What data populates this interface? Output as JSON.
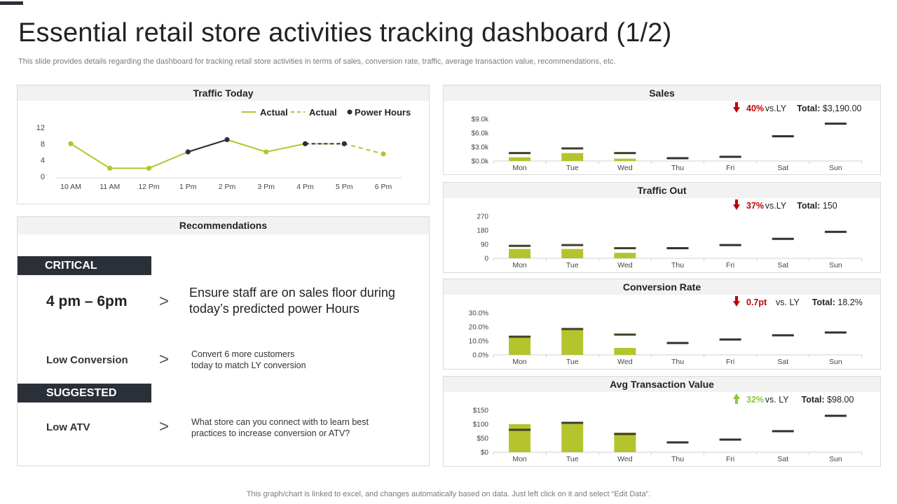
{
  "page": {
    "title": "Essential retail store activities tracking dashboard (1/2)",
    "subtitle": "This slide provides details regarding the dashboard for tracking retail store activities in terms of sales, conversion rate, traffic, average transaction value, recommendations, etc.",
    "footer": "This graph/chart is linked to excel, and changes automatically based on data. Just left click on it and select “Edit Data”."
  },
  "colors": {
    "accent": "#b5c42d",
    "dark": "#3f3f25",
    "neutral": "#2b2f38",
    "down": "#c00000",
    "up": "#8dc63f"
  },
  "traffic_today": {
    "title": "Traffic Today",
    "legend": [
      {
        "label": "Actual",
        "style": "solid",
        "color": "#b5c42d"
      },
      {
        "label": "Actual",
        "style": "dashed",
        "color": "#b5c42d"
      },
      {
        "label": "Power Hours",
        "style": "dot",
        "color": "#2b2f38"
      }
    ]
  },
  "recommendations": {
    "title": "Recommendations",
    "critical_label": "CRITICAL",
    "critical_time": "4 pm – 6pm",
    "critical_text": "Ensure staff are on sales floor  during today’s predicted power Hours",
    "low_conversion_label": "Low Conversion",
    "low_conversion_text_1": "Convert  6 more customers",
    "low_conversion_text_2": "today to match LY conversion",
    "suggested_label": "SUGGESTED",
    "low_atv_label": "Low ATV",
    "low_atv_text_1": "What store can you connect with to learn best",
    "low_atv_text_2": "practices to increase conversion  or ATV?",
    "chevron": ">"
  },
  "kpi": {
    "sales": {
      "title": "Sales",
      "pct": "40%",
      "vs": "vs.LY",
      "total": "Total: $3,190.00",
      "dir": "down"
    },
    "traffic_out": {
      "title": "Traffic Out",
      "pct": "37%",
      "vs": "vs.LY",
      "total": "Total: 150",
      "dir": "down"
    },
    "conversion": {
      "title": "Conversion Rate",
      "pct": "0.7pt",
      "vs": "vs. LY",
      "total": "Total: 18.2%",
      "dir": "down"
    },
    "atv": {
      "title": "Avg Transaction Value",
      "pct": "32%",
      "vs": "vs. LY",
      "total": "Total: $98.00",
      "dir": "up"
    }
  },
  "chart_data": [
    {
      "id": "traffic_today",
      "type": "line",
      "title": "Traffic Today",
      "categories": [
        "10 AM",
        "11 AM",
        "12 Pm",
        "1 Pm",
        "2 Pm",
        "3  Pm",
        "4  Pm",
        "5  Pm",
        "6  Pm"
      ],
      "yticks": [
        "0",
        "4",
        "8",
        "12"
      ],
      "ylim": [
        0,
        12
      ],
      "series": [
        {
          "name": "Actual",
          "style": "solid",
          "values": [
            8,
            2,
            2,
            6,
            9,
            6,
            8,
            null,
            null
          ]
        },
        {
          "name": "Actual",
          "style": "dashed",
          "values": [
            null,
            null,
            null,
            null,
            null,
            null,
            null,
            8,
            5.5
          ]
        },
        {
          "name": "Power Hours",
          "style": "dark",
          "segments": [
            [
              3,
              4
            ],
            [
              6,
              7
            ]
          ],
          "values": [
            null,
            null,
            null,
            6,
            9,
            null,
            8,
            8,
            null
          ]
        }
      ]
    },
    {
      "id": "sales",
      "type": "bar",
      "categories": [
        "Mon",
        "Tue",
        "Wed",
        "Thu",
        "Fri",
        "Sat",
        "Sun"
      ],
      "yticks": [
        "$0.0k",
        "$3.0k",
        "$6.0k",
        "$9.0k"
      ],
      "ylim": [
        0,
        9000
      ],
      "values": [
        800,
        1700,
        500,
        null,
        null,
        null,
        null
      ],
      "ly": [
        1700,
        2700,
        1700,
        600,
        900,
        5300,
        8000
      ]
    },
    {
      "id": "traffic_out",
      "type": "bar",
      "categories": [
        "Mon",
        "Tue",
        "Wed",
        "Thu",
        "Fri",
        "Sat",
        "Sun"
      ],
      "yticks": [
        "0",
        "90",
        "180",
        "270"
      ],
      "ylim": [
        0,
        270
      ],
      "values": [
        60,
        60,
        35,
        null,
        null,
        null,
        null
      ],
      "ly": [
        80,
        85,
        65,
        65,
        85,
        125,
        170
      ]
    },
    {
      "id": "conversion",
      "type": "bar",
      "categories": [
        "Mon",
        "Tue",
        "Wed",
        "Thu",
        "Fri",
        "Sat",
        "Sun"
      ],
      "yticks": [
        "0.0%",
        "10.0%",
        "20.0%",
        "30.0%"
      ],
      "ylim": [
        0,
        30
      ],
      "values": [
        13,
        18,
        5,
        null,
        null,
        null,
        null
      ],
      "ly": [
        13,
        18.5,
        14.5,
        8.5,
        11,
        14,
        16
      ]
    },
    {
      "id": "atv",
      "type": "bar",
      "categories": [
        "Mon",
        "Tue",
        "Wed",
        "Thu",
        "Fri",
        "Sat",
        "Sun"
      ],
      "yticks": [
        "$0",
        "$50",
        "$100",
        "$150"
      ],
      "ylim": [
        0,
        150
      ],
      "values": [
        100,
        105,
        70,
        null,
        null,
        null,
        null
      ],
      "ly": [
        80,
        105,
        65,
        35,
        45,
        75,
        130
      ]
    }
  ]
}
